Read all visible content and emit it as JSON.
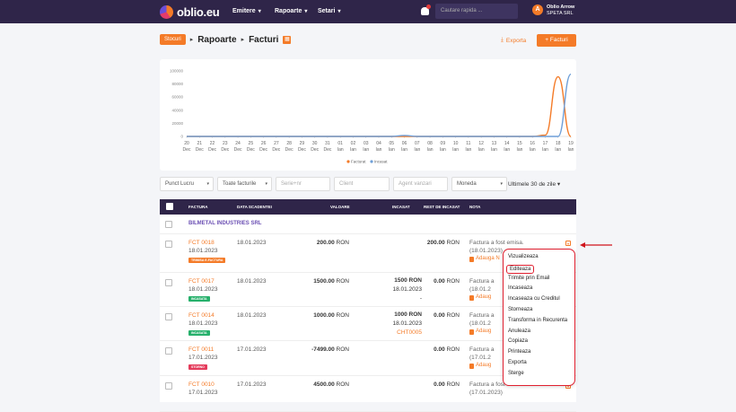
{
  "topbar": {
    "logo": "oblio.eu",
    "nav": [
      "Emitere",
      "Rapoarte",
      "Setari"
    ],
    "search_placeholder": "Cautare rapida ...",
    "avatar": "A",
    "user_name": "Oblio Arrow",
    "company": "SPETA SRL"
  },
  "breadcrumb": {
    "stoc": "Stocuri",
    "items": [
      "Rapoarte",
      "Facturi"
    ]
  },
  "actions": {
    "export": "Exporta",
    "new_invoice": "+ Facturi"
  },
  "chart_data": {
    "type": "line",
    "yticks": [
      "100000",
      "80000",
      "60000",
      "40000",
      "20000",
      "0"
    ],
    "ylim": [
      0,
      100000
    ],
    "x": [
      "20 Dec",
      "21 Dec",
      "22 Dec",
      "23 Dec",
      "24 Dec",
      "25 Dec",
      "26 Dec",
      "27 Dec",
      "28 Dec",
      "29 Dec",
      "30 Dec",
      "31 Dec",
      "01 Ian",
      "02 Ian",
      "03 Ian",
      "04 Ian",
      "05 Ian",
      "06 Ian",
      "07 Ian",
      "08 Ian",
      "09 Ian",
      "10 Ian",
      "11 Ian",
      "12 Ian",
      "13 Ian",
      "14 Ian",
      "15 Ian",
      "16 Ian",
      "17 Ian",
      "18 Ian",
      "19 Ian"
    ],
    "series": [
      {
        "name": "Facturat",
        "color": "#f47b28",
        "values": [
          0,
          0,
          0,
          0,
          0,
          0,
          0,
          0,
          0,
          0,
          0,
          0,
          0,
          0,
          0,
          0,
          0,
          0,
          0,
          0,
          0,
          0,
          0,
          0,
          0,
          0,
          0,
          0,
          2000,
          91000,
          0
        ]
      },
      {
        "name": "Incasat",
        "color": "#6f9fd8",
        "values": [
          0,
          0,
          0,
          0,
          0,
          0,
          0,
          0,
          0,
          0,
          0,
          0,
          0,
          0,
          0,
          0,
          0,
          1500,
          0,
          0,
          0,
          0,
          0,
          0,
          0,
          0,
          0,
          0,
          0,
          0,
          95000
        ]
      }
    ],
    "legend_position": "bottom"
  },
  "filters": {
    "punct": "Punct Lucru",
    "tip": "Toate facturile",
    "serie": "Serie+nr",
    "client": "Client",
    "agent": "Agent vanzari",
    "moneda": "Moneda",
    "period": "Ultimele 30 de zile"
  },
  "table": {
    "headers": [
      "FACTURA",
      "DATA SCADENTEI",
      "VALOARE",
      "INCASAT",
      "REST DE INCASAT",
      "NOTA"
    ],
    "client": "BILMETAL INDUSTRIES SRL",
    "rows": [
      {
        "no": "FCT 0018",
        "date": "18.01.2023",
        "badge": "TRIMISA E-FACTURA",
        "badge_color": "#f47b28",
        "due": "18.01.2023",
        "value": "200.00",
        "cur": "RON",
        "inc": "",
        "inc_date": "",
        "inc_doc": "",
        "rest": "200.00",
        "nota": "Factura a fost emisa.",
        "nota_date": "(18.01.2023)",
        "adauga": "Adauga N"
      },
      {
        "no": "FCT 0017",
        "date": "18.01.2023",
        "badge": "INCASATA",
        "badge_color": "#26b06b",
        "due": "18.01.2023",
        "value": "1500.00",
        "cur": "RON",
        "inc": "1500 RON",
        "inc_date": "18.01.2023",
        "inc_doc": "-",
        "rest": "0.00",
        "nota": "Factura a",
        "nota_date": "(18.01.2",
        "adauga": "Adaug"
      },
      {
        "no": "FCT 0014",
        "date": "18.01.2023",
        "badge": "INCASATA",
        "badge_color": "#26b06b",
        "due": "18.01.2023",
        "value": "1000.00",
        "cur": "RON",
        "inc": "1000 RON",
        "inc_date": "18.01.2023",
        "inc_doc": "CHT0005",
        "rest": "0.00",
        "nota": "Factura a",
        "nota_date": "(18.01.2",
        "adauga": "Adaug"
      },
      {
        "no": "FCT 0011",
        "date": "17.01.2023",
        "badge": "STORNO",
        "badge_color": "#e43b5b",
        "due": "17.01.2023",
        "value": "-7499.00",
        "cur": "RON",
        "inc": "",
        "inc_date": "",
        "inc_doc": "",
        "rest": "0.00",
        "nota": "Factura a",
        "nota_date": "(17.01.2",
        "adauga": "Adaug"
      },
      {
        "no": "FCT 0010",
        "date": "17.01.2023",
        "badge": "",
        "badge_color": "",
        "due": "17.01.2023",
        "value": "4500.00",
        "cur": "RON",
        "inc": "",
        "inc_date": "",
        "inc_doc": "",
        "rest": "0.00",
        "nota": "Factura a fost emisa.",
        "nota_date": "(17.01.2023)",
        "adauga": ""
      }
    ]
  },
  "menu": [
    "Vizualizeaza",
    "Editeaza",
    "Trimite prin Email",
    "Incaseaza",
    "Incaseaza cu Creditul",
    "Storneaza",
    "Transforma in Recurenta",
    "Anuleaza",
    "Copiaza",
    "Printeaza",
    "Exporta",
    "Sterge"
  ]
}
